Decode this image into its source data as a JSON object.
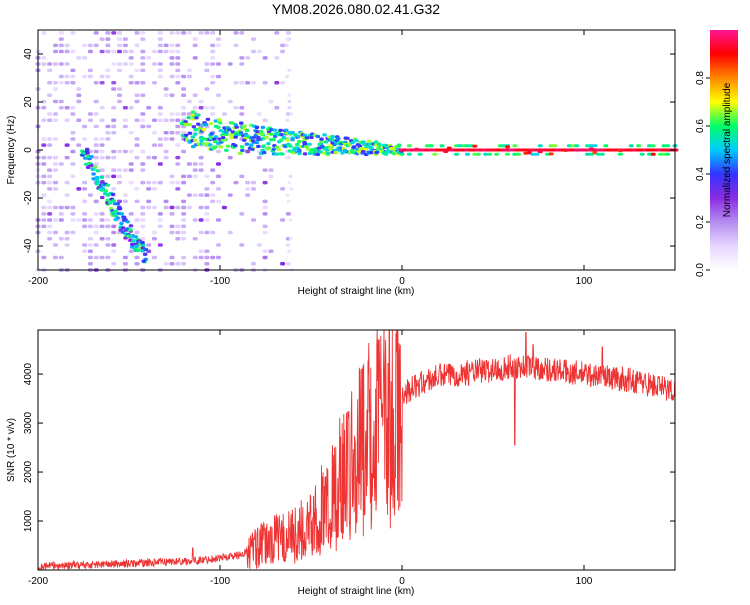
{
  "title": "YM08.2026.080.02.41.G32",
  "chart_data": [
    {
      "type": "heatmap",
      "name": "spectrogram",
      "xlabel": "Height of straight line (km)",
      "ylabel": "Frequency (Hz)",
      "xlim": [
        -200,
        150
      ],
      "ylim": [
        -50,
        50
      ],
      "xticks": [
        -200,
        -100,
        0,
        100
      ],
      "yticks": [
        -40,
        -20,
        0,
        20,
        40
      ],
      "colorbar": {
        "label": "Normalized spectral amplitude",
        "range": [
          0.0,
          1.0
        ],
        "ticks": [
          "0.0",
          "0.2",
          "0.4",
          "0.6",
          "0.8"
        ],
        "tick_values": [
          0.0,
          0.2,
          0.4,
          0.6,
          0.8
        ],
        "stops": [
          "#ffffff",
          "#e6d6ff",
          "#b48cf0",
          "#8a2be2",
          "#3333ff",
          "#00ccff",
          "#00ff66",
          "#ffff00",
          "#ff8800",
          "#ff0000",
          "#ff1493"
        ]
      },
      "features": [
        {
          "kind": "noise",
          "x_range": [
            -200,
            -60
          ],
          "f_range": [
            -50,
            50
          ],
          "level": 0.08
        },
        {
          "kind": "track",
          "points": [
            [
              -175,
              0
            ],
            [
              -165,
              -15
            ],
            [
              -155,
              -28
            ],
            [
              -150,
              -35
            ],
            [
              -140,
              -45
            ]
          ],
          "level": 0.45
        },
        {
          "kind": "track",
          "points": [
            [
              -120,
              10
            ],
            [
              -100,
              6
            ],
            [
              -80,
              4
            ],
            [
              -60,
              3
            ],
            [
              -40,
              2
            ],
            [
              -20,
              1
            ],
            [
              0,
              0
            ]
          ],
          "level": 0.5
        },
        {
          "kind": "track",
          "points": [
            [
              0,
              0
            ],
            [
              150,
              0
            ]
          ],
          "level": 0.98
        }
      ]
    },
    {
      "type": "line",
      "name": "snr",
      "xlabel": "Height of straight line (km)",
      "ylabel": "SNR (10 * v/v)",
      "xlim": [
        -200,
        150
      ],
      "ylim": [
        0,
        4900
      ],
      "xticks": [
        -200,
        -100,
        0,
        100
      ],
      "yticks": [
        1000,
        2000,
        3000,
        4000
      ],
      "color": "#ee3333",
      "envelope": [
        [
          -200,
          80
        ],
        [
          -150,
          130
        ],
        [
          -110,
          200
        ],
        [
          -90,
          300
        ],
        [
          -80,
          450
        ],
        [
          -70,
          600
        ],
        [
          -60,
          700
        ],
        [
          -50,
          1000
        ],
        [
          -40,
          1500
        ],
        [
          -30,
          2200
        ],
        [
          -20,
          2900
        ],
        [
          -10,
          3300
        ],
        [
          0,
          3600
        ],
        [
          10,
          3800
        ],
        [
          20,
          3950
        ],
        [
          30,
          4000
        ],
        [
          40,
          4050
        ],
        [
          50,
          4080
        ],
        [
          60,
          4150
        ],
        [
          70,
          4150
        ],
        [
          80,
          4100
        ],
        [
          90,
          4050
        ],
        [
          100,
          4000
        ],
        [
          110,
          3950
        ],
        [
          120,
          3900
        ],
        [
          130,
          3850
        ],
        [
          140,
          3750
        ],
        [
          150,
          3650
        ]
      ],
      "spikes": [
        [
          -115,
          450
        ],
        [
          -70,
          1100
        ],
        [
          -42,
          1900
        ],
        [
          -22,
          4100
        ],
        [
          -12,
          3500
        ],
        [
          62,
          2550
        ],
        [
          68,
          4850
        ],
        [
          72,
          4600
        ],
        [
          110,
          4550
        ]
      ]
    }
  ]
}
